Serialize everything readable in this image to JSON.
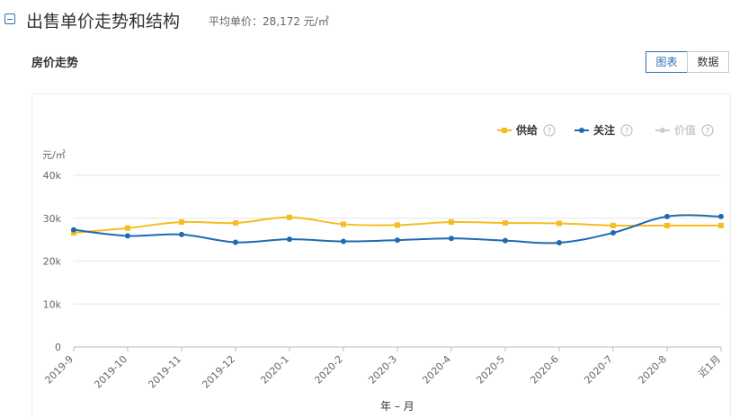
{
  "header": {
    "title": "出售单价走势和结构",
    "avg_label": "平均单价：",
    "avg_value": "28,172 元/㎡"
  },
  "section": {
    "title": "房价走势"
  },
  "view_toggle": {
    "chart_label": "图表",
    "data_label": "数据",
    "active": "chart"
  },
  "legend": [
    {
      "label": "供给",
      "color": "#f5bd21",
      "active": true
    },
    {
      "label": "关注",
      "color": "#1c6bb1",
      "active": true
    },
    {
      "label": "价值",
      "color": "#cccccc",
      "active": false
    }
  ],
  "chart_data": {
    "type": "line",
    "ylabel": "元/㎡",
    "xlabel": "年 – 月",
    "ylim": [
      0,
      40000
    ],
    "yticks": [
      0,
      10000,
      20000,
      30000,
      40000
    ],
    "ytick_labels": [
      "0",
      "10k",
      "20k",
      "30k",
      "40k"
    ],
    "grid": true,
    "legend_position": "top-right",
    "categories": [
      "2019-9",
      "2019-10",
      "2019-11",
      "2019-12",
      "2020-1",
      "2020-2",
      "2020-3",
      "2020-4",
      "2020-5",
      "2020-6",
      "2020-7",
      "2020-8",
      "近1月"
    ],
    "series": [
      {
        "name": "供给",
        "color": "#f5bd21",
        "marker": "square",
        "values": [
          26600,
          27700,
          29100,
          28900,
          30200,
          28600,
          28400,
          29100,
          28900,
          28800,
          28300,
          28300,
          28300
        ]
      },
      {
        "name": "关注",
        "color": "#1c6bb1",
        "marker": "circle",
        "values": [
          27300,
          25900,
          26200,
          24400,
          25100,
          24600,
          24900,
          25300,
          24800,
          24300,
          26600,
          30400,
          30400
        ]
      }
    ]
  }
}
